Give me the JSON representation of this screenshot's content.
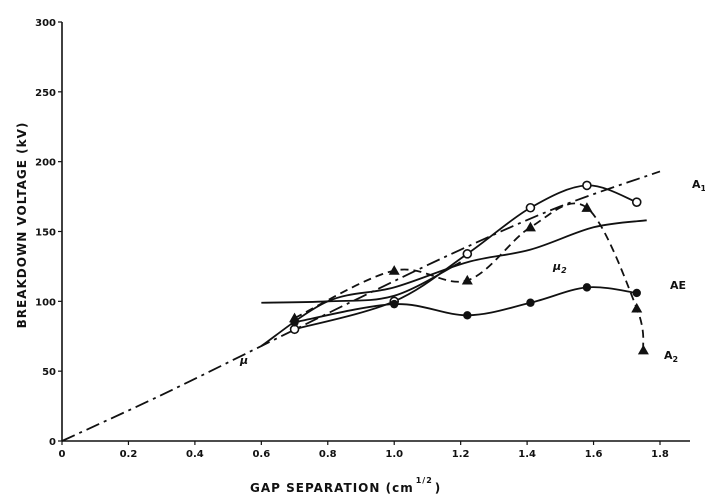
{
  "chart_data": {
    "type": "line",
    "xlabel": "GAP SEPARATION (cm",
    "xlabel_exponent": "1/2",
    "xlabel_close": ")",
    "ylabel": "BREAKDOWN VOLTAGE (kV)",
    "xlim": [
      0,
      1.8
    ],
    "ylim": [
      0,
      300
    ],
    "x_ticks": [
      "0",
      "0.2",
      "0.4",
      "0.6",
      "0.8",
      "1.0",
      "1.2",
      "1.4",
      "1.6",
      "1.8"
    ],
    "y_ticks": [
      "0",
      "50",
      "100",
      "150",
      "200",
      "250",
      "300"
    ],
    "grid": false,
    "series": [
      {
        "name": "μ",
        "style": "dash-dot",
        "marker": "none",
        "points": [
          [
            0.0,
            0
          ],
          [
            0.3,
            33
          ],
          [
            0.6,
            68
          ],
          [
            0.9,
            103
          ],
          [
            1.2,
            137
          ],
          [
            1.5,
            168
          ],
          [
            1.8,
            193
          ]
        ]
      },
      {
        "name": "A₁",
        "style": "solid",
        "marker": "open-circle",
        "points": [
          [
            0.7,
            80
          ],
          [
            1.0,
            100
          ],
          [
            1.22,
            134
          ],
          [
            1.41,
            167
          ],
          [
            1.58,
            183
          ],
          [
            1.73,
            171
          ]
        ]
      },
      {
        "name": "μ₂",
        "style": "solid",
        "marker": "none",
        "points": [
          [
            0.6,
            68
          ],
          [
            0.8,
            100
          ],
          [
            1.0,
            110
          ],
          [
            1.22,
            128
          ],
          [
            1.41,
            137
          ],
          [
            1.6,
            153
          ],
          [
            1.76,
            158
          ]
        ]
      },
      {
        "name": "AE",
        "style": "solid",
        "marker": "filled-circle",
        "points": [
          [
            0.7,
            85
          ],
          [
            1.0,
            98
          ],
          [
            1.22,
            90
          ],
          [
            1.41,
            99
          ],
          [
            1.58,
            110
          ],
          [
            1.73,
            106
          ]
        ]
      },
      {
        "name": "A₂",
        "style": "dashed",
        "marker": "filled-triangle",
        "points": [
          [
            0.7,
            88
          ],
          [
            1.0,
            122
          ],
          [
            1.22,
            115
          ],
          [
            1.41,
            153
          ],
          [
            1.58,
            167
          ],
          [
            1.73,
            95
          ],
          [
            1.75,
            65
          ]
        ]
      },
      {
        "name": "",
        "style": "solid",
        "marker": "none",
        "points": [
          [
            0.6,
            99
          ],
          [
            0.8,
            100
          ],
          [
            1.0,
            104
          ],
          [
            1.2,
            128
          ]
        ]
      }
    ],
    "labels": {
      "mu": "μ",
      "a1": "A",
      "a1_sub": "1",
      "mu2": "μ",
      "mu2_sub": "2",
      "ae": "AE",
      "a2": "A",
      "a2_sub": "2"
    }
  }
}
